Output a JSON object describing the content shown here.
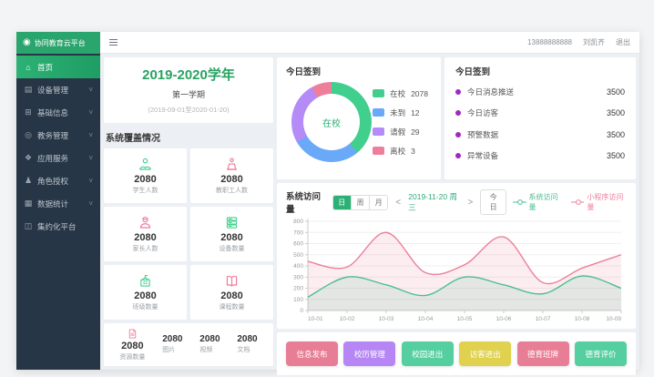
{
  "app": {
    "logo_text": "协同教育云平台",
    "brand_color": "#2ba56e"
  },
  "header": {
    "phone": "13888888888",
    "username": "刘凯齐",
    "logout_label": "退出"
  },
  "sidebar": {
    "items": [
      {
        "label": "首页",
        "icon": "home-icon",
        "active": true,
        "has_chevron": false
      },
      {
        "label": "设备管理",
        "icon": "device-manage-icon",
        "active": false,
        "has_chevron": true
      },
      {
        "label": "基础信息",
        "icon": "basic-info-icon",
        "active": false,
        "has_chevron": true
      },
      {
        "label": "教务管理",
        "icon": "academic-icon",
        "active": false,
        "has_chevron": true
      },
      {
        "label": "应用服务",
        "icon": "app-service-icon",
        "active": false,
        "has_chevron": true
      },
      {
        "label": "角色授权",
        "icon": "role-auth-icon",
        "active": false,
        "has_chevron": true
      },
      {
        "label": "数据统计",
        "icon": "data-stats-icon",
        "active": false,
        "has_chevron": true
      },
      {
        "label": "集约化平台",
        "icon": "platform-icon",
        "active": false,
        "has_chevron": false
      }
    ]
  },
  "term_card": {
    "title": "2019-2020学年",
    "subtitle": "第一学期",
    "range": "(2019-09-01至2020-01-20)"
  },
  "coverage": {
    "section_title": "系统覆盖情况",
    "cards": [
      {
        "value": "2080",
        "label": "学生人数",
        "icon": "student-icon",
        "color": "green"
      },
      {
        "value": "2080",
        "label": "教职工人数",
        "icon": "staff-icon",
        "color": "pink"
      },
      {
        "value": "2080",
        "label": "家长人数",
        "icon": "parent-icon",
        "color": "pink"
      },
      {
        "value": "2080",
        "label": "设备数量",
        "icon": "device-icon",
        "color": "green"
      },
      {
        "value": "2080",
        "label": "班级数量",
        "icon": "school-icon",
        "color": "green"
      },
      {
        "value": "2080",
        "label": "课程数量",
        "icon": "course-icon",
        "color": "pink"
      }
    ],
    "resource_card": {
      "value": "2080",
      "label": "资源数量",
      "icon": "resource-icon",
      "items": [
        {
          "value": "2080",
          "label": "图片"
        },
        {
          "value": "2080",
          "label": "视频"
        },
        {
          "value": "2080",
          "label": "文档"
        }
      ]
    }
  },
  "signin_donut": {
    "title": "今日签到"
  },
  "today_stats": {
    "title": "今日签到",
    "dot_color": "#a128c0",
    "rows": [
      {
        "label": "今日消息推送",
        "value": "3500"
      },
      {
        "label": "今日访客",
        "value": "3500"
      },
      {
        "label": "预警数据",
        "value": "3500"
      },
      {
        "label": "异常设备",
        "value": "3500"
      }
    ]
  },
  "visits": {
    "title": "系统访问量",
    "tabs": [
      "日",
      "周",
      "月"
    ],
    "active_tab": "日",
    "prev_arrow": "<",
    "next_arrow": ">",
    "date": "2019-11-20 周三",
    "today_label": "今日"
  },
  "chart_data": [
    {
      "type": "pie",
      "title": "今日签到",
      "center_label": "在校",
      "labels": [
        "在校",
        "未到",
        "请假",
        "离校"
      ],
      "values": [
        2078,
        12,
        29,
        3
      ],
      "colors": [
        "#41cf8e",
        "#6aa9f7",
        "#b48bf7",
        "#ee7f9b"
      ],
      "display_angles": [
        140,
        100,
        90,
        30
      ],
      "legend_position": "right",
      "donut": true
    },
    {
      "type": "area",
      "title": "系统访问量",
      "x": [
        "10-01",
        "10-02",
        "10-03",
        "10-04",
        "10-05",
        "10-06",
        "10-07",
        "10-08",
        "10-09"
      ],
      "series": [
        {
          "name": "小程序访问量",
          "color": "#ec7f9b",
          "fill": "rgba(236,127,155,0.14)",
          "values": [
            440,
            390,
            700,
            340,
            410,
            660,
            250,
            380,
            500
          ]
        },
        {
          "name": "系统访问量",
          "color": "#4cbf90",
          "fill": "rgba(76,191,144,0.14)",
          "values": [
            120,
            300,
            230,
            135,
            300,
            230,
            150,
            310,
            200
          ]
        }
      ],
      "ylim": [
        0,
        800
      ],
      "ytick_step": 100,
      "grid": true,
      "legend_position": "top-right"
    }
  ],
  "quick_actions": {
    "buttons": [
      {
        "label": "信息发布",
        "color": "#e87e96"
      },
      {
        "label": "校历管理",
        "color": "#b687f4"
      },
      {
        "label": "校园进出",
        "color": "#56cfa0"
      },
      {
        "label": "访客进出",
        "color": "#e0d14f"
      },
      {
        "label": "德育班牌",
        "color": "#e87e96"
      },
      {
        "label": "德育评价",
        "color": "#56cfa0"
      }
    ]
  }
}
